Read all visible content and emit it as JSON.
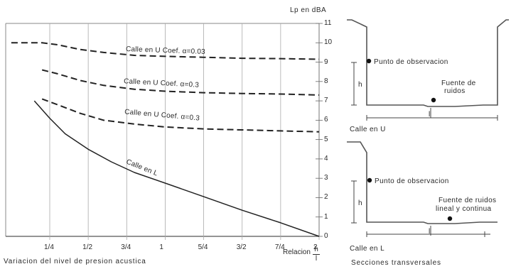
{
  "chart": {
    "unit_label": "Lp en dBA",
    "caption": "Variacion del nivel de presion acustica",
    "ratio_label": "Relacion",
    "ratio_numerator": "h",
    "ratio_denominator": "l",
    "curve_labels": [
      "Calle en U Coef. α=0.03",
      "Calle en U Coef. α=0.3",
      "Calle en U Coef. α=0.3",
      "Calle en L"
    ]
  },
  "chart_data": {
    "type": "line",
    "x_ticks": [
      "1/4",
      "1/2",
      "3/4",
      "1",
      "5/4",
      "3/2",
      "7/4",
      "2"
    ],
    "y_ticks": [
      "0",
      "1",
      "2",
      "3",
      "4",
      "5",
      "6",
      "7",
      "8",
      "9",
      "10",
      "11"
    ],
    "xlim": [
      0,
      2
    ],
    "ylim": [
      0,
      11
    ],
    "series": [
      {
        "name": "Calle en U Coef. α=0.03",
        "style": "dashed",
        "x": [
          0.0,
          0.1,
          0.2,
          0.3,
          0.45,
          0.6,
          0.8,
          1.0,
          1.25,
          1.5,
          1.75,
          2.0
        ],
        "y": [
          10.0,
          10.0,
          10.0,
          9.9,
          9.65,
          9.5,
          9.35,
          9.3,
          9.25,
          9.2,
          9.18,
          9.15
        ]
      },
      {
        "name": "Calle en U Coef. α=0.3",
        "style": "dashed",
        "x": [
          0.2,
          0.3,
          0.45,
          0.6,
          0.8,
          1.0,
          1.25,
          1.5,
          1.75,
          2.0
        ],
        "y": [
          8.6,
          8.4,
          8.05,
          7.8,
          7.6,
          7.5,
          7.42,
          7.38,
          7.35,
          7.3
        ]
      },
      {
        "name": "Calle en U Coef. α=0.3",
        "style": "dashed",
        "x": [
          0.2,
          0.3,
          0.45,
          0.6,
          0.8,
          1.0,
          1.25,
          1.5,
          1.75,
          2.0
        ],
        "y": [
          7.1,
          6.8,
          6.35,
          6.0,
          5.8,
          5.65,
          5.55,
          5.5,
          5.45,
          5.4
        ]
      },
      {
        "name": "Calle en L",
        "style": "solid",
        "x": [
          0.15,
          0.25,
          0.35,
          0.5,
          0.65,
          0.8,
          1.0,
          1.25,
          1.5,
          1.75,
          2.0
        ],
        "y": [
          7.0,
          6.1,
          5.3,
          4.5,
          3.85,
          3.3,
          2.75,
          2.05,
          1.35,
          0.7,
          0.0
        ]
      }
    ]
  },
  "sections": {
    "caption": "Secciones transversales",
    "u_section": {
      "label": "Calle en U",
      "observation_point": "Punto de observacion",
      "source_line1": "Fuente de",
      "source_line2": "ruidos",
      "h_label": "h",
      "l_label": "l"
    },
    "l_section": {
      "label": "Calle en L",
      "observation_point": "Punto de observacion",
      "source_line1": "Fuente de ruidos",
      "source_line2": "lineal y continua",
      "h_label": "h",
      "l_label": "l"
    }
  }
}
